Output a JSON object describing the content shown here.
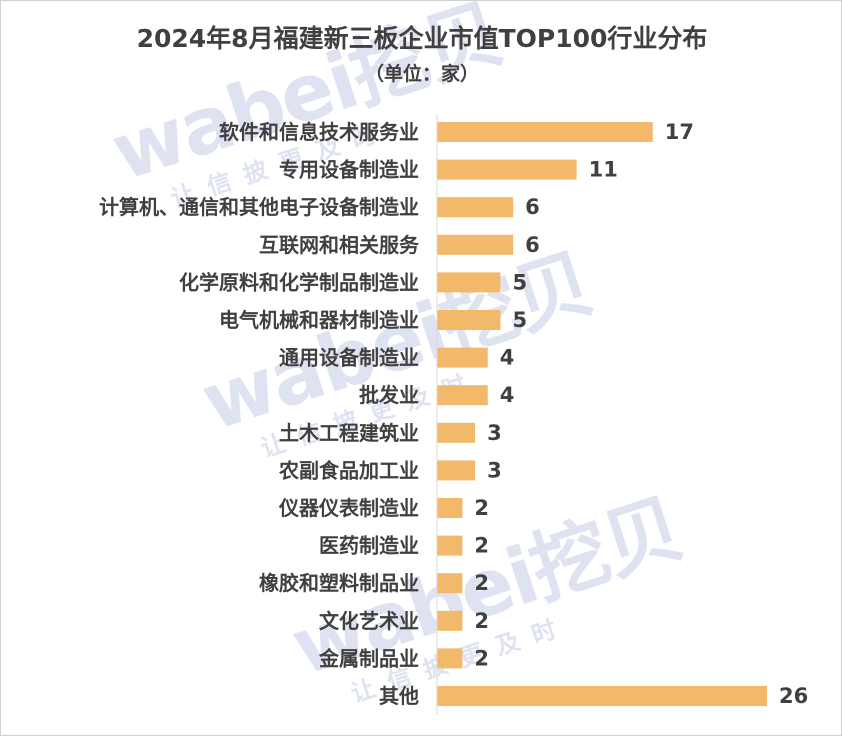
{
  "watermark": {
    "brand": "wabei挖贝",
    "tagline": "让信披更及时"
  },
  "chart_data": {
    "type": "bar",
    "orientation": "horizontal",
    "title": "2024年8月福建新三板企业市值TOP100行业分布",
    "subtitle": "（单位：家）",
    "categories": [
      "软件和信息技术服务业",
      "专用设备制造业",
      "计算机、通信和其他电子设备制造业",
      "互联网和相关服务",
      "化学原料和化学制品制造业",
      "电气机械和器材制造业",
      "通用设备制造业",
      "批发业",
      "土木工程建筑业",
      "农副食品加工业",
      "仪器仪表制造业",
      "医药制造业",
      "橡胶和塑料制品业",
      "文化艺术业",
      "金属制品业",
      "其他"
    ],
    "values": [
      17,
      11,
      6,
      6,
      5,
      5,
      4,
      4,
      3,
      3,
      2,
      2,
      2,
      2,
      2,
      26
    ],
    "xlim": [
      0,
      26
    ],
    "bar_color": "#f2b96a",
    "grid": false,
    "legend": "none",
    "data_labels": true
  }
}
